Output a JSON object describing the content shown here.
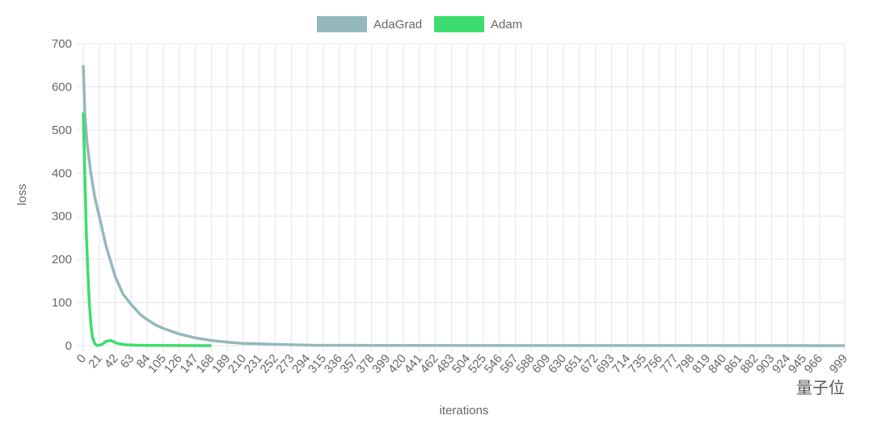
{
  "chart_data": {
    "type": "line",
    "legend": "top",
    "xlabel": "iterations",
    "ylabel": "loss",
    "watermark": "量子位",
    "grid": true,
    "xlim": [
      0,
      999
    ],
    "ylim": [
      0,
      700
    ],
    "yticks": [
      0,
      100,
      200,
      300,
      400,
      500,
      600,
      700
    ],
    "xticks": [
      0,
      21,
      42,
      63,
      84,
      105,
      126,
      147,
      168,
      189,
      210,
      231,
      252,
      273,
      294,
      315,
      336,
      357,
      378,
      399,
      420,
      441,
      462,
      483,
      504,
      525,
      546,
      567,
      588,
      609,
      630,
      651,
      672,
      693,
      714,
      735,
      756,
      777,
      798,
      819,
      840,
      861,
      882,
      903,
      924,
      945,
      966,
      999
    ],
    "series": [
      {
        "name": "AdaGrad",
        "color": "#93b9bc",
        "x": [
          0,
          2,
          5,
          10,
          15,
          21,
          30,
          42,
          52,
          63,
          75,
          84,
          95,
          105,
          126,
          147,
          168,
          189,
          210,
          252,
          300,
          400,
          600,
          800,
          999
        ],
        "values": [
          650,
          540,
          470,
          400,
          345,
          300,
          230,
          160,
          120,
          95,
          72,
          60,
          48,
          40,
          27,
          18,
          12,
          8,
          5,
          3,
          1,
          0.5,
          0.2,
          0.1,
          0
        ]
      },
      {
        "name": "Adam",
        "color": "#3ddc6e",
        "x": [
          0,
          2,
          4,
          6,
          8,
          10,
          12,
          15,
          18,
          24,
          30,
          36,
          40,
          45,
          55,
          70,
          100,
          168
        ],
        "values": [
          540,
          400,
          260,
          170,
          100,
          50,
          20,
          5,
          0,
          2,
          10,
          12,
          9,
          5,
          2,
          1,
          0.5,
          0
        ]
      }
    ]
  }
}
